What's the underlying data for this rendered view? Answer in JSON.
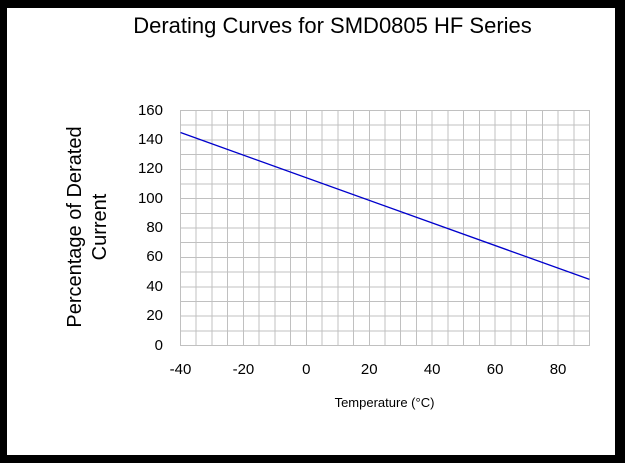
{
  "frame": {
    "border_color": "#000000",
    "background": "#ffffff"
  },
  "chart_data": {
    "type": "line",
    "title": "Derating Curves for SMD0805 HF Series",
    "xlabel": "Temperature (°C)",
    "ylabel": "Percentage of Derated Current",
    "xlim": [
      -40,
      90
    ],
    "ylim": [
      0,
      160
    ],
    "x_tick_labels": [
      -40,
      -20,
      0,
      20,
      40,
      60,
      80
    ],
    "y_tick_labels": [
      0,
      20,
      40,
      60,
      80,
      100,
      120,
      140,
      160
    ],
    "x_tick_step": 20,
    "y_tick_step": 20,
    "x_grid_step": 5,
    "y_grid_step": 10,
    "grid": "on",
    "grid_color": "#c0c0c0",
    "legend": "none",
    "series": [
      {
        "name": "derating_curve",
        "color": "#0000cc",
        "points": [
          [
            -40,
            145
          ],
          [
            90,
            45
          ]
        ]
      }
    ]
  }
}
